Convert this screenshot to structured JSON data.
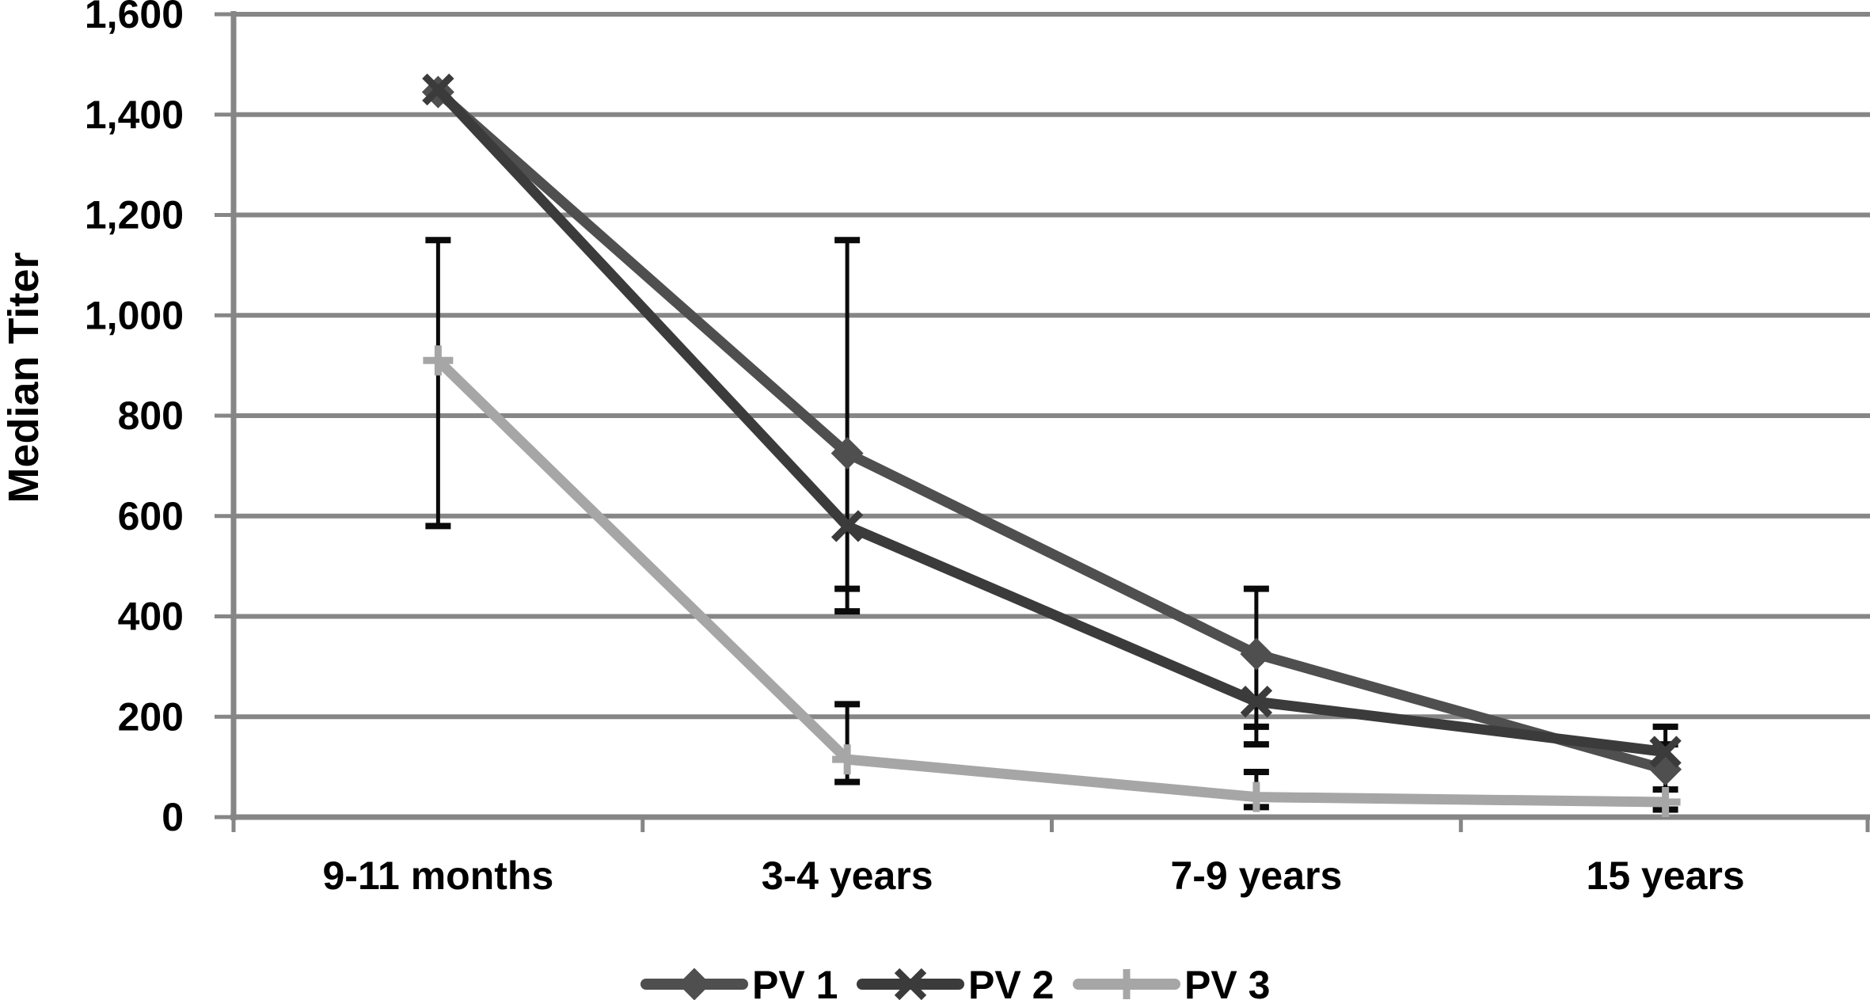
{
  "chart_data": {
    "type": "line",
    "title": "",
    "xlabel": "",
    "ylabel": "Median Titer",
    "categories": [
      "9-11 months",
      "3-4 years",
      "7-9 years",
      "15 years"
    ],
    "series": [
      {
        "name": "PV 1",
        "marker": "diamond",
        "color": "#4f4f4f",
        "values": [
          1445,
          725,
          325,
          95
        ]
      },
      {
        "name": "PV 2",
        "marker": "x",
        "color": "#3b3b3b",
        "values": [
          1450,
          580,
          230,
          130
        ]
      },
      {
        "name": "PV 3",
        "marker": "plus",
        "color": "#a6a6a6",
        "values": [
          910,
          115,
          40,
          30
        ]
      }
    ],
    "error_bars": {
      "color": "#0a0a0a",
      "by_category": [
        {
          "category": "9-11 months",
          "segments": [
            {
              "from": 580,
              "to": 1150,
              "caps": [
                1150,
                580
              ]
            }
          ]
        },
        {
          "category": "3-4 years",
          "segments": [
            {
              "from": 410,
              "to": 1150,
              "caps": [
                1150,
                455,
                410
              ]
            },
            {
              "from": 70,
              "to": 225,
              "caps": [
                225,
                70
              ]
            }
          ]
        },
        {
          "category": "7-9 years",
          "segments": [
            {
              "from": 145,
              "to": 455,
              "caps": [
                455,
                180,
                145
              ]
            },
            {
              "from": 20,
              "to": 90,
              "caps": [
                90,
                20
              ]
            }
          ]
        },
        {
          "category": "15 years",
          "segments": [
            {
              "from": 15,
              "to": 180,
              "caps": [
                180,
                145,
                55,
                15
              ]
            }
          ]
        }
      ]
    },
    "ylim": [
      0,
      1600
    ],
    "ytick_step": 200,
    "ytick_labels": [
      "0",
      "200",
      "400",
      "600",
      "800",
      "1,000",
      "1,200",
      "1,400",
      "1,600"
    ],
    "grid": true,
    "legend_position": "bottom",
    "legend_labels": [
      "PV 1",
      "PV 2",
      "PV 3"
    ],
    "axis_color": "#868686",
    "grid_color": "#868686",
    "error_bar_color": "#0a0a0a",
    "text_color": "#000000",
    "background_color": "#ffffff"
  }
}
